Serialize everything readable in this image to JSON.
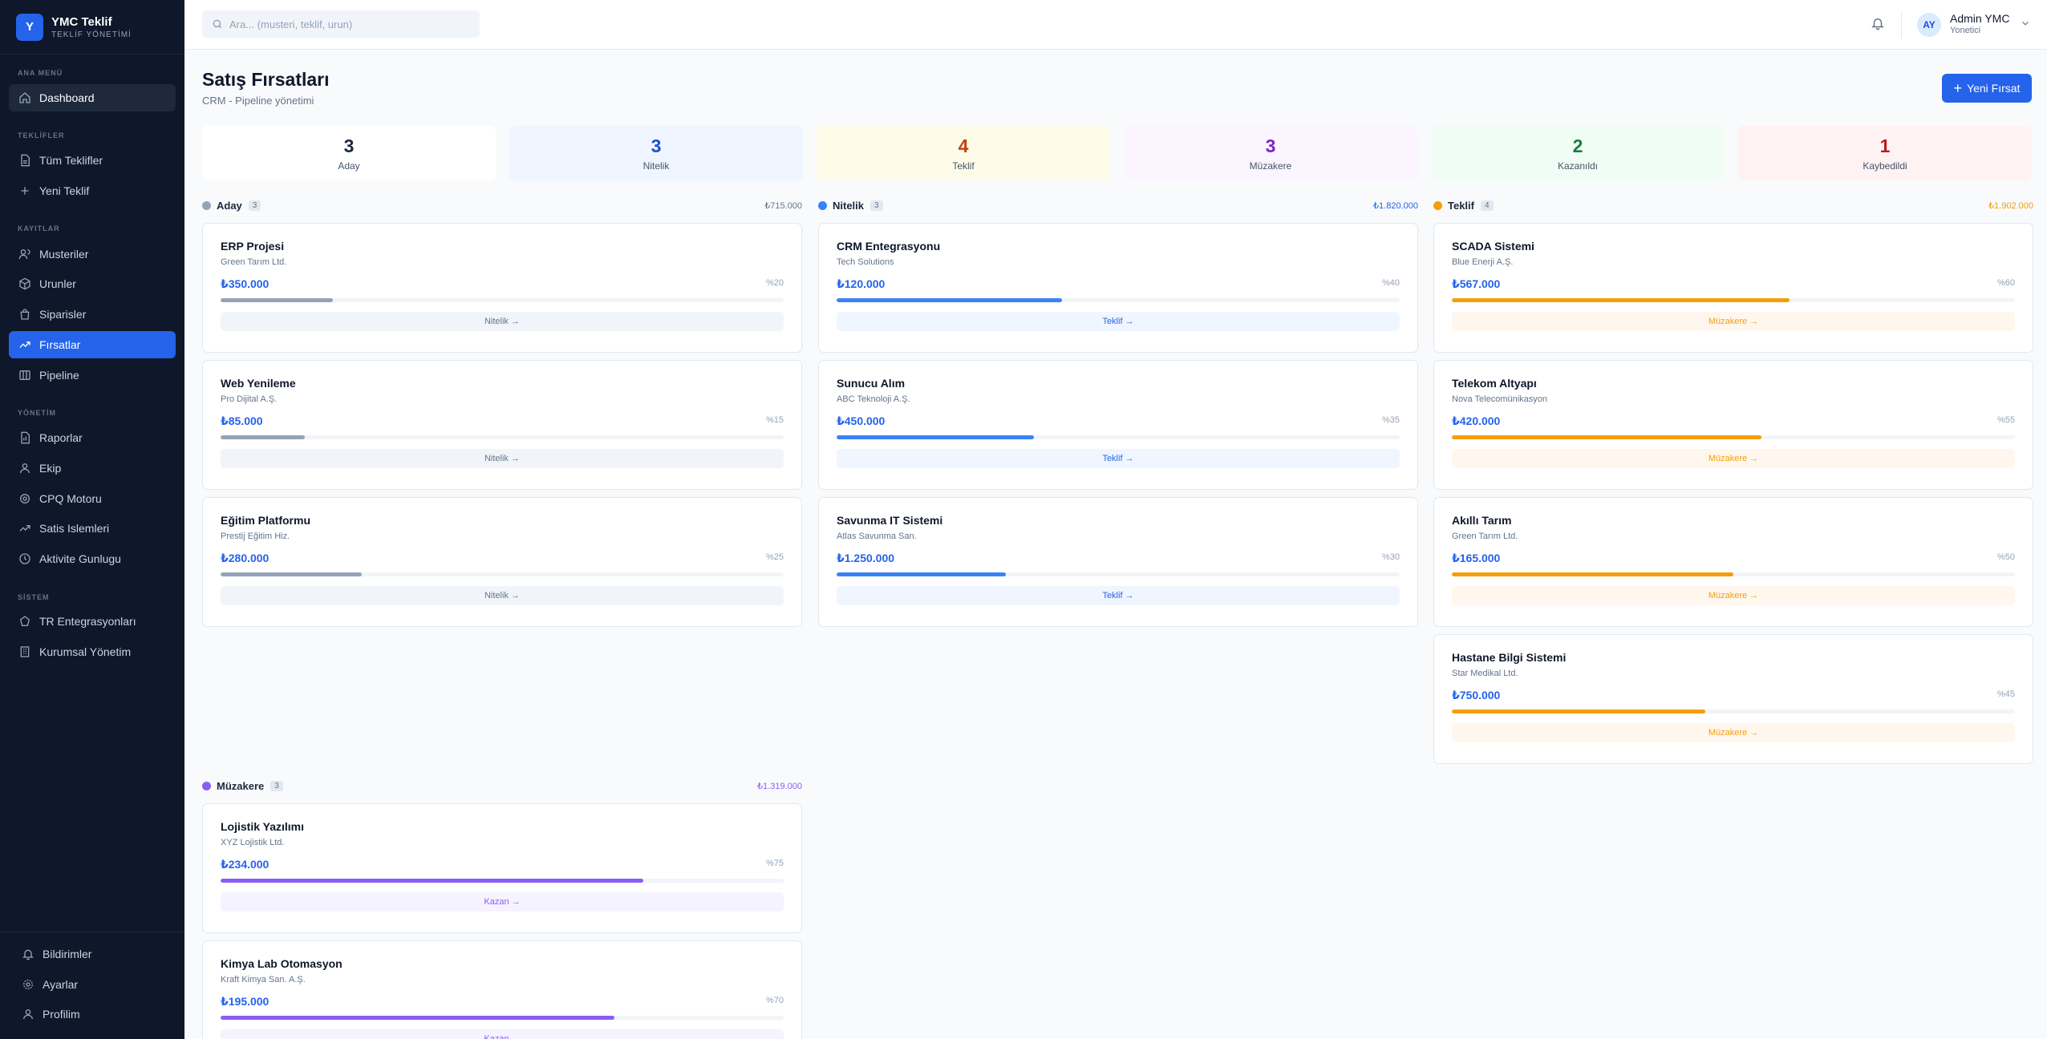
{
  "brand": {
    "logo_letter": "Y",
    "title": "YMC Teklif",
    "subtitle": "TEKLİF YÖNETİMİ"
  },
  "sidebar": {
    "sections": [
      "ANA MENÜ",
      "TEKLİFLER",
      "KAYITLAR",
      "YÖNETİM",
      "SİSTEM"
    ],
    "items": [
      {
        "label": "Dashboard",
        "icon": "home-icon"
      },
      {
        "label": "Tüm Teklifler",
        "icon": "document-icon"
      },
      {
        "label": "Yeni Teklif",
        "icon": "plus-icon"
      },
      {
        "label": "Musteriler",
        "icon": "users-icon"
      },
      {
        "label": "Urunler",
        "icon": "box-icon"
      },
      {
        "label": "Siparisler",
        "icon": "bag-icon"
      },
      {
        "label": "Fırsatlar",
        "icon": "trending-up-icon"
      },
      {
        "label": "Pipeline",
        "icon": "columns-icon"
      },
      {
        "label": "Raporlar",
        "icon": "chart-icon"
      },
      {
        "label": "Ekip",
        "icon": "team-icon"
      },
      {
        "label": "CPQ Motoru",
        "icon": "settings-icon"
      },
      {
        "label": "Satis Islemleri",
        "icon": "trending-up-icon"
      },
      {
        "label": "Aktivite Gunlugu",
        "icon": "clock-icon"
      },
      {
        "label": "TR Entegrasyonları",
        "icon": "globe-icon"
      },
      {
        "label": "Kurumsal Yönetim",
        "icon": "building-icon"
      }
    ],
    "bottom_items": [
      {
        "label": "Bildirimler",
        "icon": "bell-icon"
      },
      {
        "label": "Ayarlar",
        "icon": "gear-icon"
      },
      {
        "label": "Profilim",
        "icon": "user-icon"
      }
    ]
  },
  "header": {
    "search_placeholder": "Ara... (musteri, teklif, urun)",
    "avatar_initials": "AY",
    "user_name": "Admin YMC",
    "user_role": "Yonetici"
  },
  "page": {
    "title": "Satış Fırsatları",
    "subtitle": "CRM - Pipeline yönetimi",
    "new_button_label": "Yeni Fırsat"
  },
  "stats": [
    {
      "value": "3",
      "label": "Aday",
      "color": "#1e293b",
      "bg": "#ffffff"
    },
    {
      "value": "3",
      "label": "Nitelik",
      "color": "#1d4ed8",
      "bg": "#eff6ff"
    },
    {
      "value": "4",
      "label": "Teklif",
      "color": "#c2410c",
      "bg": "#fefce8"
    },
    {
      "value": "3",
      "label": "Müzakere",
      "color": "#7e22ce",
      "bg": "#faf5ff"
    },
    {
      "value": "2",
      "label": "Kazanıldı",
      "color": "#15803d",
      "bg": "#f0fdf4"
    },
    {
      "value": "1",
      "label": "Kaybedildi",
      "color": "#b91c1c",
      "bg": "#fef2f2"
    }
  ],
  "columns": [
    {
      "name": "Aday",
      "count": "3",
      "total": "₺715.000",
      "color": "#94a3b8",
      "total_color": "#64748b",
      "bar_color": "#94a3b8",
      "btn_bg": "#f1f5f9",
      "btn_color": "#64748b",
      "cards": [
        {
          "title": "ERP Projesi",
          "company": "Green Tarım Ltd.",
          "amount": "₺350.000",
          "pct": "%20",
          "progress": 0.2,
          "action": "Nitelik →"
        },
        {
          "title": "Web Yenileme",
          "company": "Pro Dijital A.Ş.",
          "amount": "₺85.000",
          "pct": "%15",
          "progress": 0.15,
          "action": "Nitelik →"
        },
        {
          "title": "Eğitim Platformu",
          "company": "Prestij Eğitim Hiz.",
          "amount": "₺280.000",
          "pct": "%25",
          "progress": 0.25,
          "action": "Nitelik →"
        }
      ]
    },
    {
      "name": "Nitelik",
      "count": "3",
      "total": "₺1.820.000",
      "color": "#3b82f6",
      "total_color": "#2563eb",
      "bar_color": "#3b82f6",
      "btn_bg": "#eff6ff",
      "btn_color": "#2563eb",
      "cards": [
        {
          "title": "CRM Entegrasyonu",
          "company": "Tech Solutions",
          "amount": "₺120.000",
          "pct": "%40",
          "progress": 0.4,
          "action": "Teklif →"
        },
        {
          "title": "Sunucu Alım",
          "company": "ABC Teknoloji A.Ş.",
          "amount": "₺450.000",
          "pct": "%35",
          "progress": 0.35,
          "action": "Teklif →"
        },
        {
          "title": "Savunma IT Sistemi",
          "company": "Atlas Savunma San.",
          "amount": "₺1.250.000",
          "pct": "%30",
          "progress": 0.3,
          "action": "Teklif →"
        }
      ]
    },
    {
      "name": "Teklif",
      "count": "4",
      "total": "₺1.902.000",
      "color": "#f59e0b",
      "total_color": "#f59e0b",
      "bar_color": "#f59e0b",
      "btn_bg": "#fff7ed",
      "btn_color": "#f59e0b",
      "cards": [
        {
          "title": "SCADA Sistemi",
          "company": "Blue Enerji A.Ş.",
          "amount": "₺567.000",
          "pct": "%60",
          "progress": 0.6,
          "action": "Müzakere →"
        },
        {
          "title": "Telekom Altyapı",
          "company": "Nova Telecomünikasyon",
          "amount": "₺420.000",
          "pct": "%55",
          "progress": 0.55,
          "action": "Müzakere →"
        },
        {
          "title": "Akıllı Tarım",
          "company": "Green Tarım Ltd.",
          "amount": "₺165.000",
          "pct": "%50",
          "progress": 0.5,
          "action": "Müzakere →"
        },
        {
          "title": "Hastane Bilgi Sistemi",
          "company": "Star Medikal Ltd.",
          "amount": "₺750.000",
          "pct": "%45",
          "progress": 0.45,
          "action": "Müzakere →"
        }
      ]
    },
    {
      "name": "Müzakere",
      "count": "3",
      "total": "₺1.319.000",
      "color": "#8b5cf6",
      "total_color": "#8b5cf6",
      "bar_color": "#8b5cf6",
      "btn_bg": "#f5f3ff",
      "btn_color": "#8b5cf6",
      "cards": [
        {
          "title": "Lojistik Yazılımı",
          "company": "XYZ Lojistik Ltd.",
          "amount": "₺234.000",
          "pct": "%75",
          "progress": 0.75,
          "action": "Kazan →"
        },
        {
          "title": "Kimya Lab Otomasyon",
          "company": "Kraft Kimya San. A.Ş.",
          "amount": "₺195.000",
          "pct": "%70",
          "progress": 0.7,
          "action": "Kazan →"
        }
      ]
    }
  ]
}
